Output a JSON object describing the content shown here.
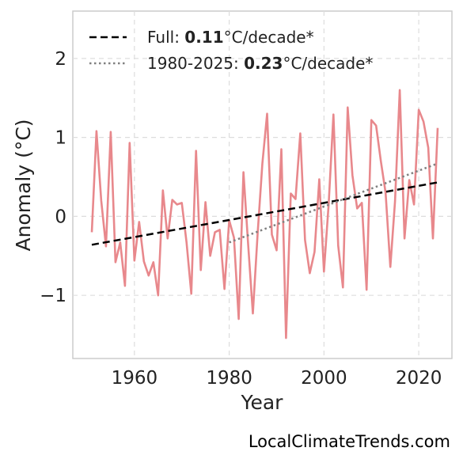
{
  "chart_data": {
    "type": "line",
    "xlabel": "Year",
    "ylabel": "Anomaly (°C)",
    "xlim": [
      1947,
      2027
    ],
    "ylim": [
      -1.8,
      2.6
    ],
    "x_ticks": [
      1960,
      1980,
      2000,
      2020
    ],
    "x_tick_labels": [
      "1960",
      "1980",
      "2000",
      "2020"
    ],
    "y_ticks": [
      2,
      1,
      0,
      -1
    ],
    "y_tick_labels": [
      "2",
      "1",
      "0",
      "−1"
    ],
    "grid": true,
    "legend_position": "top-left",
    "series": [
      {
        "style": "solid",
        "color": "#e8888c",
        "x": [
          1951,
          1952,
          1953,
          1954,
          1955,
          1956,
          1957,
          1958,
          1959,
          1960,
          1961,
          1962,
          1963,
          1964,
          1965,
          1966,
          1967,
          1968,
          1969,
          1970,
          1971,
          1972,
          1973,
          1974,
          1975,
          1976,
          1977,
          1978,
          1979,
          1980,
          1981,
          1982,
          1983,
          1984,
          1985,
          1986,
          1987,
          1988,
          1989,
          1990,
          1991,
          1992,
          1993,
          1994,
          1995,
          1996,
          1997,
          1998,
          1999,
          2000,
          2001,
          2002,
          2003,
          2004,
          2005,
          2006,
          2007,
          2008,
          2009,
          2010,
          2011,
          2012,
          2013,
          2014,
          2015,
          2016,
          2017,
          2018,
          2019,
          2020,
          2021,
          2022,
          2023,
          2024
        ],
        "y": [
          -0.2,
          1.08,
          0.2,
          -0.38,
          1.07,
          -0.58,
          -0.33,
          -0.88,
          0.93,
          -0.56,
          -0.07,
          -0.57,
          -0.75,
          -0.58,
          -1.0,
          0.33,
          -0.28,
          0.21,
          0.15,
          0.17,
          -0.33,
          -0.98,
          0.83,
          -0.68,
          0.18,
          -0.5,
          -0.2,
          -0.17,
          -0.92,
          -0.05,
          -0.27,
          -1.3,
          0.56,
          -0.35,
          -1.23,
          -0.22,
          0.67,
          1.3,
          -0.23,
          -0.43,
          0.85,
          -1.54,
          0.29,
          0.22,
          1.05,
          -0.3,
          -0.72,
          -0.45,
          0.47,
          -0.7,
          0.16,
          1.29,
          -0.37,
          -0.9,
          1.38,
          0.52,
          0.1,
          0.17,
          -0.93,
          1.22,
          1.15,
          0.7,
          0.3,
          -0.64,
          0.19,
          1.6,
          -0.28,
          0.46,
          0.15,
          1.35,
          1.2,
          0.87,
          -0.28,
          1.12
        ]
      },
      {
        "name": "Full",
        "style": "dashed",
        "color": "#000000",
        "x": [
          1951,
          2024
        ],
        "y": [
          -0.36,
          0.43
        ]
      },
      {
        "name": "1980-2025",
        "style": "dotted",
        "color": "#808080",
        "x": [
          1980,
          2024
        ],
        "y": [
          -0.33,
          0.67
        ]
      }
    ],
    "legend": [
      {
        "prefix": "Full: ",
        "value": "0.11",
        "suffix": "°C/decade*",
        "style": "dashed",
        "color": "#000000"
      },
      {
        "prefix": "1980-2025: ",
        "value": "0.23",
        "suffix": "°C/decade*",
        "style": "dotted",
        "color": "#808080"
      }
    ]
  },
  "watermark": "LocalClimateTrends.com"
}
